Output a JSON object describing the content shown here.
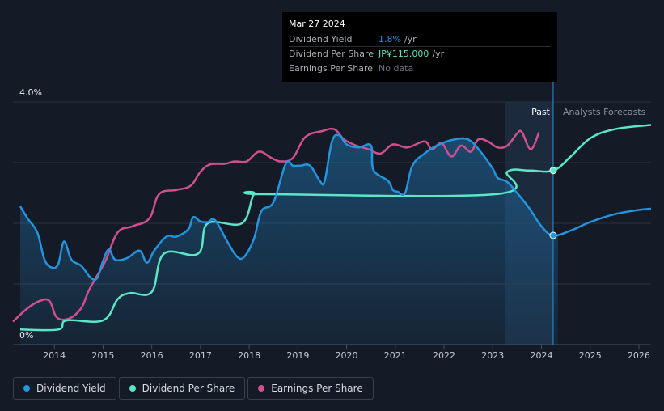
{
  "tooltip": {
    "date": "Mar 27 2024",
    "rows": [
      {
        "name": "Dividend Yield",
        "value": "1.8%",
        "unit": "/yr",
        "color": "#2394df"
      },
      {
        "name": "Dividend Per Share",
        "value": "JP¥115.000",
        "unit": "/yr",
        "color": "#5ce6c8"
      },
      {
        "name": "Earnings Per Share",
        "value": "No data",
        "unit": "",
        "color": "#6b7280"
      }
    ]
  },
  "legend": [
    {
      "label": "Dividend Yield",
      "color": "#2394df"
    },
    {
      "label": "Dividend Per Share",
      "color": "#5ce6c8"
    },
    {
      "label": "Earnings Per Share",
      "color": "#d14f8e"
    }
  ],
  "chart_data": {
    "type": "line",
    "title": "",
    "xlabel": "",
    "ylabel": "",
    "y_top_label": "4.0%",
    "y_bottom_label": "0%",
    "xlim": [
      2013.15,
      2026.25
    ],
    "ylim": [
      0,
      4.0
    ],
    "x_ticks": [
      "2014",
      "2015",
      "2016",
      "2017",
      "2018",
      "2019",
      "2020",
      "2021",
      "2022",
      "2023",
      "2024",
      "2025",
      "2026"
    ],
    "past_label": "Past",
    "forecast_label": "Analysts Forecasts",
    "forecast_region_start": 2023.25,
    "current_date": 2024.24,
    "colors": {
      "yield": "#2394df",
      "dps": "#5ce6c8",
      "eps": "#d14f8e"
    },
    "series": [
      {
        "name": "Dividend Yield",
        "unit": "%",
        "points": [
          [
            2013.3,
            2.28
          ],
          [
            2013.45,
            2.08
          ],
          [
            2013.65,
            1.85
          ],
          [
            2013.8,
            1.4
          ],
          [
            2013.95,
            1.27
          ],
          [
            2014.08,
            1.33
          ],
          [
            2014.2,
            1.7
          ],
          [
            2014.35,
            1.4
          ],
          [
            2014.55,
            1.3
          ],
          [
            2014.75,
            1.1
          ],
          [
            2014.88,
            1.1
          ],
          [
            2015.0,
            1.38
          ],
          [
            2015.12,
            1.57
          ],
          [
            2015.25,
            1.4
          ],
          [
            2015.5,
            1.43
          ],
          [
            2015.75,
            1.55
          ],
          [
            2015.9,
            1.35
          ],
          [
            2016.05,
            1.55
          ],
          [
            2016.3,
            1.78
          ],
          [
            2016.5,
            1.78
          ],
          [
            2016.75,
            1.9
          ],
          [
            2016.85,
            2.1
          ],
          [
            2017.0,
            2.03
          ],
          [
            2017.15,
            2.02
          ],
          [
            2017.3,
            2.05
          ],
          [
            2017.55,
            1.7
          ],
          [
            2017.75,
            1.45
          ],
          [
            2017.9,
            1.45
          ],
          [
            2018.1,
            1.75
          ],
          [
            2018.25,
            2.2
          ],
          [
            2018.5,
            2.35
          ],
          [
            2018.75,
            2.98
          ],
          [
            2018.9,
            2.95
          ],
          [
            2019.05,
            2.95
          ],
          [
            2019.25,
            2.95
          ],
          [
            2019.45,
            2.7
          ],
          [
            2019.55,
            2.7
          ],
          [
            2019.7,
            3.35
          ],
          [
            2019.85,
            3.45
          ],
          [
            2020.0,
            3.3
          ],
          [
            2020.25,
            3.25
          ],
          [
            2020.5,
            3.28
          ],
          [
            2020.55,
            2.88
          ],
          [
            2020.85,
            2.7
          ],
          [
            2020.95,
            2.55
          ],
          [
            2021.05,
            2.52
          ],
          [
            2021.2,
            2.5
          ],
          [
            2021.35,
            2.95
          ],
          [
            2021.6,
            3.15
          ],
          [
            2021.85,
            3.28
          ],
          [
            2022.2,
            3.38
          ],
          [
            2022.5,
            3.38
          ],
          [
            2022.75,
            3.18
          ],
          [
            2023.0,
            2.9
          ],
          [
            2023.1,
            2.75
          ],
          [
            2023.3,
            2.68
          ],
          [
            2023.5,
            2.5
          ],
          [
            2023.75,
            2.25
          ],
          [
            2024.0,
            1.95
          ],
          [
            2024.24,
            1.8
          ],
          [
            2024.6,
            1.88
          ],
          [
            2025.0,
            2.02
          ],
          [
            2025.5,
            2.15
          ],
          [
            2026.0,
            2.22
          ],
          [
            2026.25,
            2.24
          ]
        ]
      },
      {
        "name": "Dividend Per Share",
        "unit": "JP¥",
        "points": [
          [
            2013.3,
            0.25
          ],
          [
            2014.08,
            0.25
          ],
          [
            2014.25,
            0.4
          ],
          [
            2015.0,
            0.4
          ],
          [
            2015.3,
            0.75
          ],
          [
            2015.55,
            0.85
          ],
          [
            2016.0,
            0.87
          ],
          [
            2016.25,
            1.5
          ],
          [
            2016.95,
            1.5
          ],
          [
            2017.15,
            2.0
          ],
          [
            2017.85,
            2.0
          ],
          [
            2018.1,
            2.48
          ],
          [
            2018.35,
            2.48
          ],
          [
            2023.05,
            2.48
          ],
          [
            2023.3,
            2.85
          ],
          [
            2023.75,
            2.87
          ],
          [
            2024.24,
            2.87
          ],
          [
            2024.6,
            3.1
          ],
          [
            2025.0,
            3.4
          ],
          [
            2025.5,
            3.55
          ],
          [
            2026.25,
            3.62
          ]
        ]
      },
      {
        "name": "Earnings Per Share",
        "unit": "JP¥",
        "points": [
          [
            2013.15,
            0.38
          ],
          [
            2013.45,
            0.6
          ],
          [
            2013.7,
            0.72
          ],
          [
            2013.9,
            0.72
          ],
          [
            2014.05,
            0.45
          ],
          [
            2014.3,
            0.43
          ],
          [
            2014.55,
            0.6
          ],
          [
            2014.7,
            0.88
          ],
          [
            2014.85,
            1.1
          ],
          [
            2015.05,
            1.38
          ],
          [
            2015.3,
            1.85
          ],
          [
            2015.6,
            1.95
          ],
          [
            2015.95,
            2.08
          ],
          [
            2016.15,
            2.48
          ],
          [
            2016.5,
            2.55
          ],
          [
            2016.8,
            2.62
          ],
          [
            2017.0,
            2.85
          ],
          [
            2017.2,
            2.97
          ],
          [
            2017.5,
            2.98
          ],
          [
            2017.7,
            3.02
          ],
          [
            2017.95,
            3.02
          ],
          [
            2018.2,
            3.18
          ],
          [
            2018.45,
            3.08
          ],
          [
            2018.65,
            3.02
          ],
          [
            2018.9,
            3.08
          ],
          [
            2019.15,
            3.42
          ],
          [
            2019.5,
            3.52
          ],
          [
            2019.75,
            3.55
          ],
          [
            2019.95,
            3.38
          ],
          [
            2020.2,
            3.28
          ],
          [
            2020.45,
            3.22
          ],
          [
            2020.7,
            3.15
          ],
          [
            2020.95,
            3.3
          ],
          [
            2021.25,
            3.25
          ],
          [
            2021.6,
            3.35
          ],
          [
            2021.75,
            3.22
          ],
          [
            2021.95,
            3.32
          ],
          [
            2022.15,
            3.1
          ],
          [
            2022.35,
            3.28
          ],
          [
            2022.55,
            3.18
          ],
          [
            2022.7,
            3.38
          ],
          [
            2022.9,
            3.35
          ],
          [
            2023.1,
            3.25
          ],
          [
            2023.3,
            3.28
          ],
          [
            2023.5,
            3.48
          ],
          [
            2023.6,
            3.5
          ],
          [
            2023.78,
            3.22
          ],
          [
            2023.95,
            3.5
          ]
        ]
      }
    ]
  }
}
